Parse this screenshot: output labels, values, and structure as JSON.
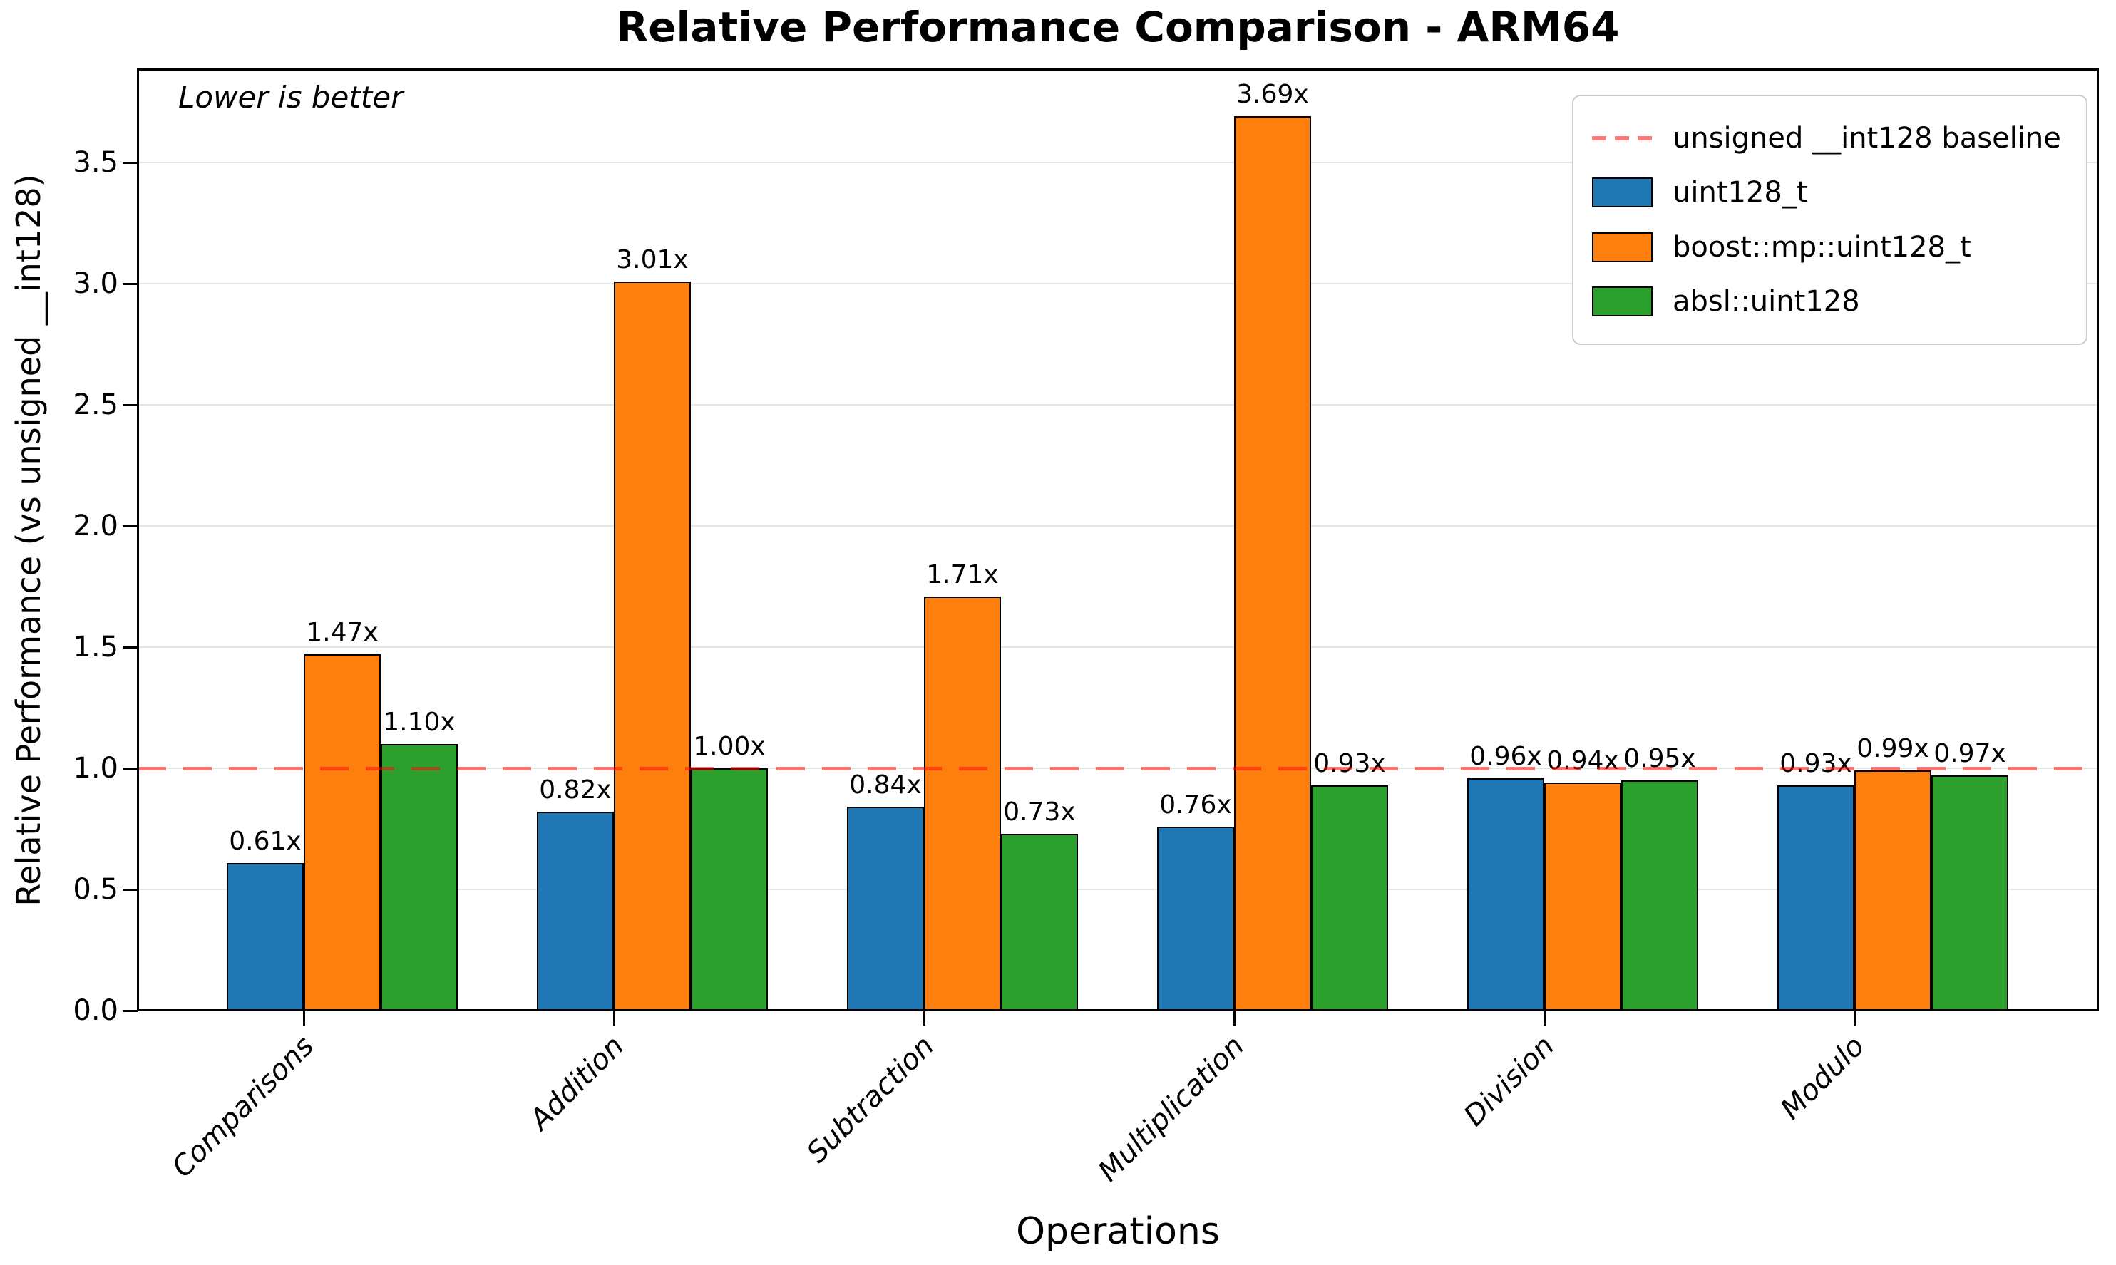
{
  "title": "Relative Performance Comparison - ARM64",
  "annotation": "Lower is better",
  "axes": {
    "x_label": "Operations",
    "y_label": "Relative Performance (vs unsigned __int128)",
    "y_ticks": [
      "0.0",
      "0.5",
      "1.0",
      "1.5",
      "2.0",
      "2.5",
      "3.0",
      "3.5"
    ]
  },
  "legend": {
    "entries": [
      {
        "type": "line",
        "color": "#ff6b6b",
        "label": "unsigned __int128 baseline"
      },
      {
        "type": "patch",
        "color": "#1f77b4",
        "label": "uint128_t"
      },
      {
        "type": "patch",
        "color": "#ff7f0e",
        "label": "boost::mp::uint128_t"
      },
      {
        "type": "patch",
        "color": "#2ca02c",
        "label": "absl::uint128"
      }
    ]
  },
  "chart_data": {
    "type": "bar",
    "title": "Relative Performance Comparison - ARM64",
    "xlabel": "Operations",
    "ylabel": "Relative Performance (vs unsigned __int128)",
    "categories": [
      "Comparisons",
      "Addition",
      "Subtraction",
      "Multiplication",
      "Division",
      "Modulo"
    ],
    "series": [
      {
        "name": "uint128_t",
        "color": "#1f77b4",
        "values": [
          0.61,
          0.82,
          0.84,
          0.76,
          0.96,
          0.93
        ],
        "labels": [
          "0.61x",
          "0.82x",
          "0.84x",
          "0.76x",
          "0.96x",
          "0.93x"
        ]
      },
      {
        "name": "boost::mp::uint128_t",
        "color": "#ff7f0e",
        "values": [
          1.47,
          3.01,
          1.71,
          3.69,
          0.94,
          0.99
        ],
        "labels": [
          "1.47x",
          "3.01x",
          "1.71x",
          "3.69x",
          "0.94x",
          "0.99x"
        ]
      },
      {
        "name": "absl::uint128",
        "color": "#2ca02c",
        "values": [
          1.1,
          1.0,
          0.73,
          0.93,
          0.95,
          0.97
        ],
        "labels": [
          "1.10x",
          "1.00x",
          "0.73x",
          "0.93x",
          "0.95x",
          "0.97x"
        ]
      }
    ],
    "baseline": {
      "value": 1.0,
      "label": "unsigned __int128 baseline",
      "color": "#ff6b6b"
    },
    "annotation": "Lower is better",
    "ylim": [
      0.0,
      3.88
    ],
    "y_tick_step": 0.5,
    "grid": true,
    "legend_position": "upper right"
  }
}
